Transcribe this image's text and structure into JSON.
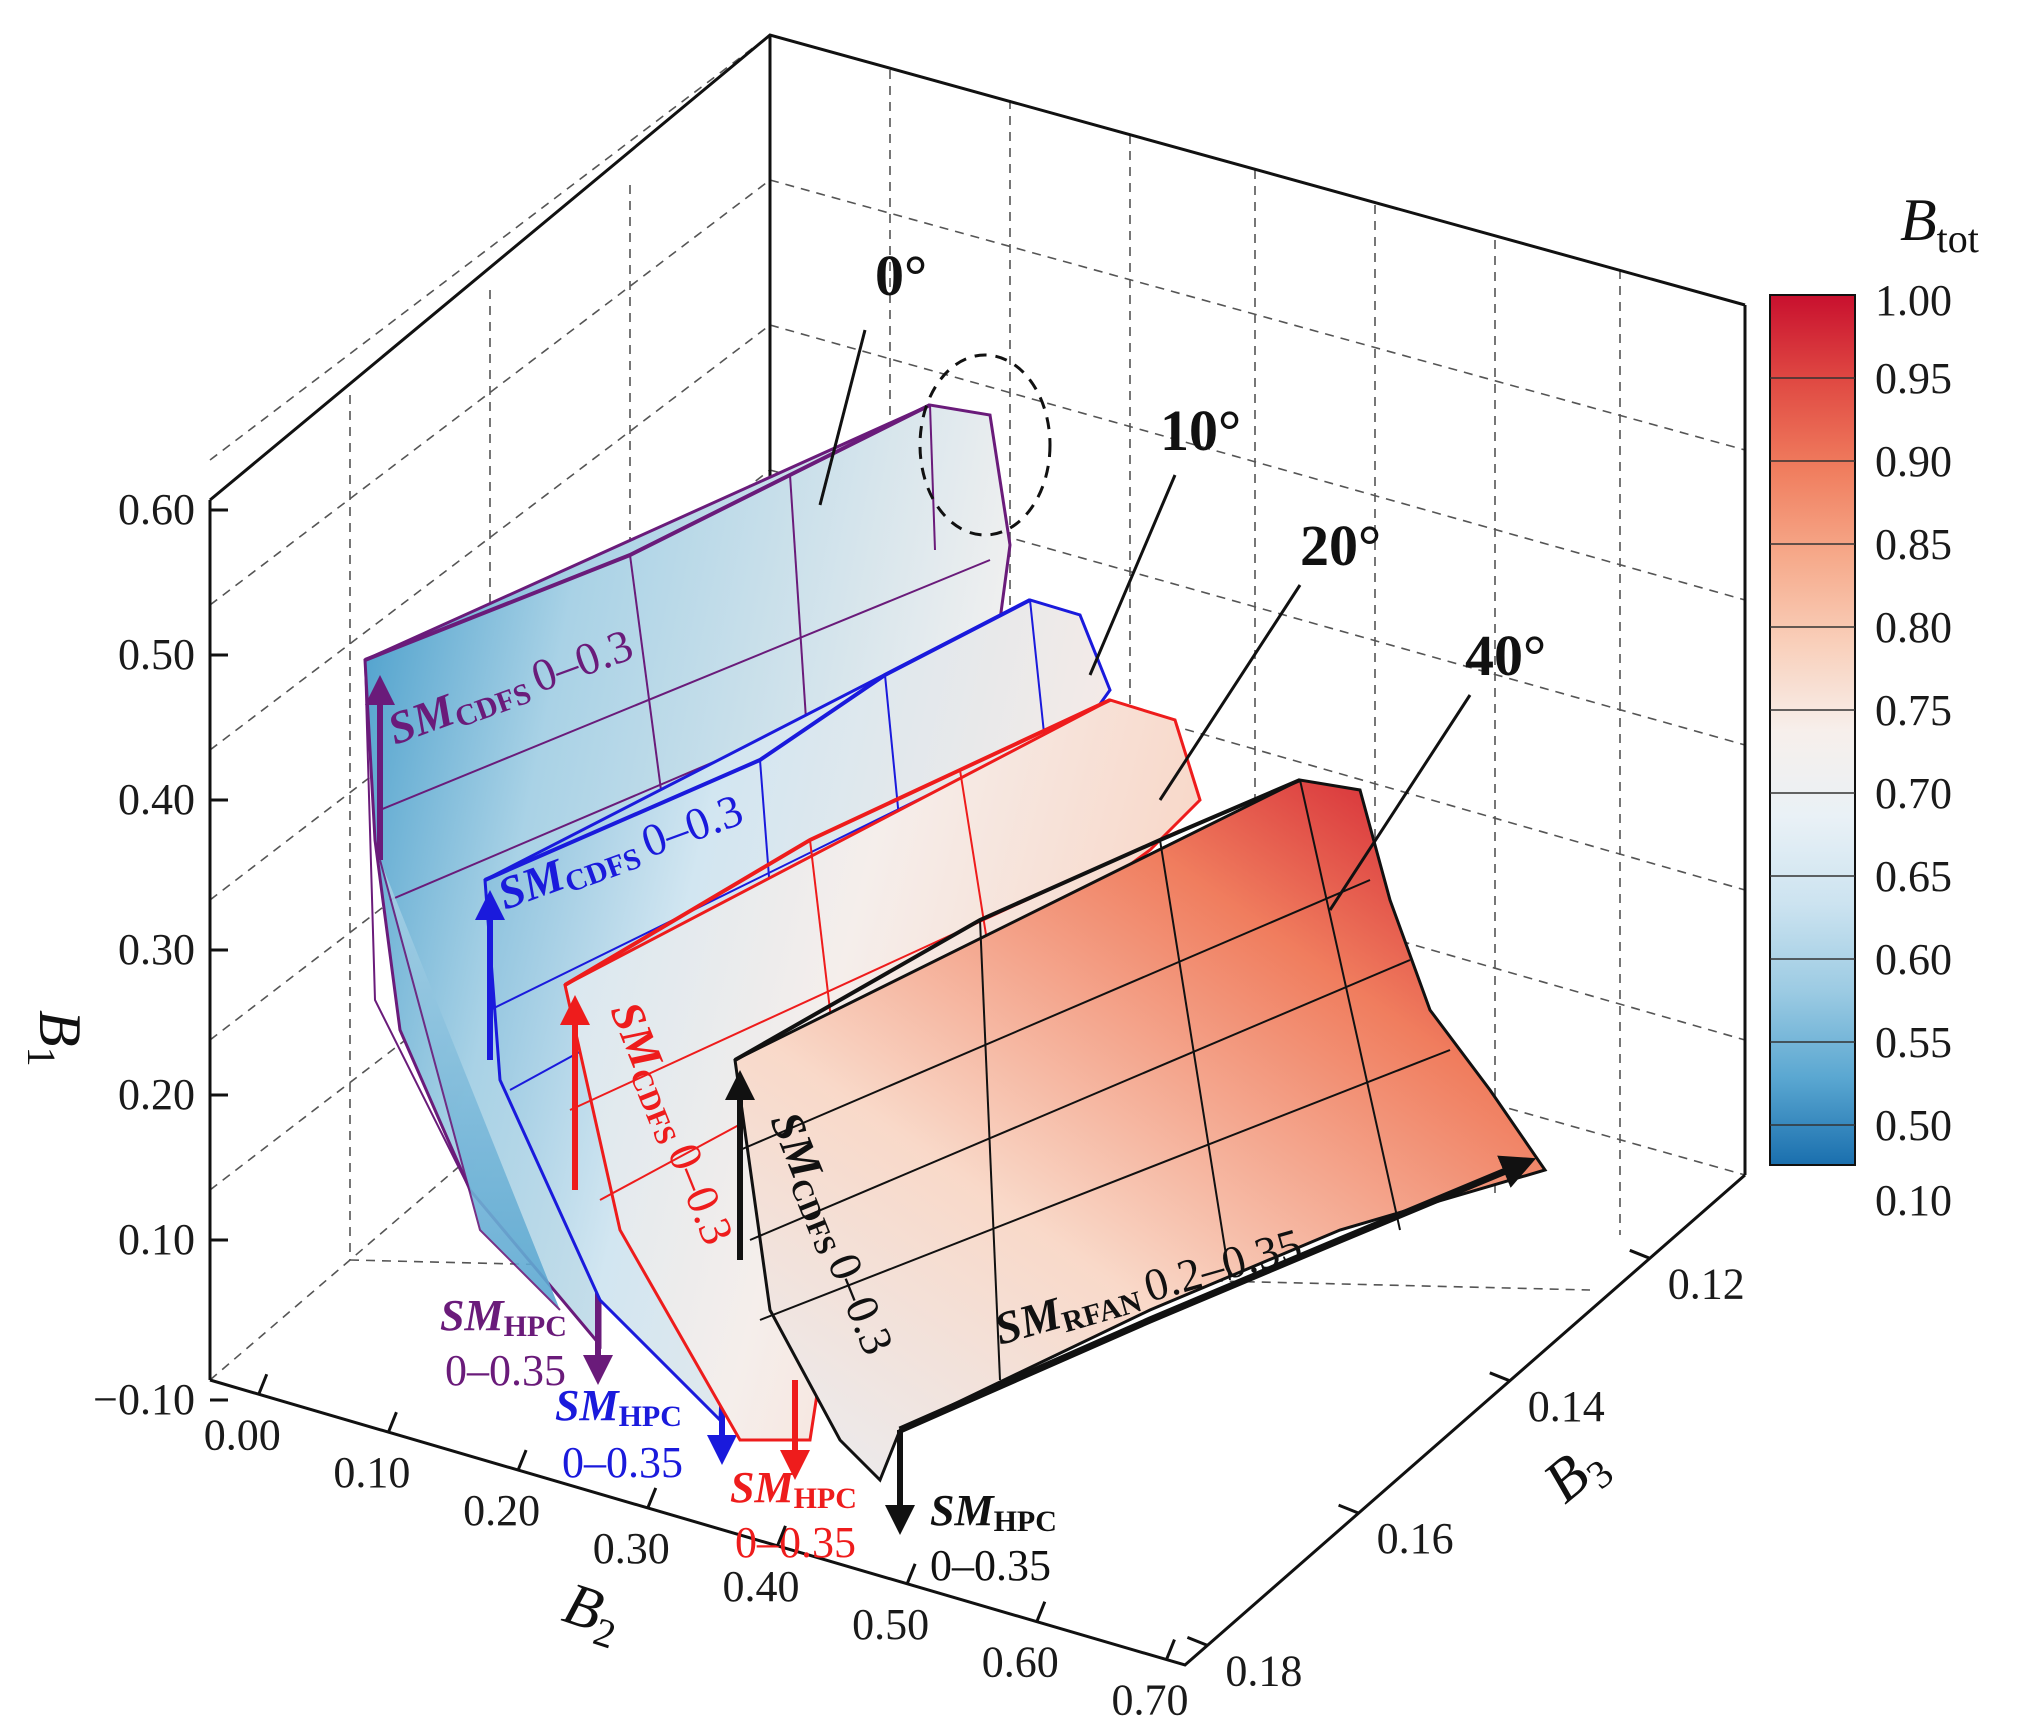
{
  "chart_data": {
    "type": "surface3d",
    "title": "",
    "axes": {
      "x": {
        "label": "B",
        "label_sub": "2",
        "ticks": [
          "0.00",
          "0.10",
          "0.20",
          "0.30",
          "0.40",
          "0.50",
          "0.60",
          "0.70"
        ]
      },
      "y": {
        "label": "B",
        "label_sub": "3",
        "ticks": [
          "0.12",
          "0.14",
          "0.16",
          "0.18"
        ]
      },
      "z": {
        "label": "B",
        "label_sub": "1",
        "ticks": [
          "0.60",
          "0.50",
          "0.40",
          "0.30",
          "0.20",
          "0.10",
          "−0.10"
        ]
      }
    },
    "colorbar": {
      "title": "B",
      "title_sub": "tot",
      "ticks": [
        "1.00",
        "0.95",
        "0.90",
        "0.85",
        "0.80",
        "0.75",
        "0.70",
        "0.65",
        "0.60",
        "0.55",
        "0.50",
        "0.10"
      ],
      "colors": [
        "#c8102e",
        "#e04a43",
        "#f07d5e",
        "#f6a98a",
        "#f9cfba",
        "#f5ebe6",
        "#eef2f6",
        "#d2e6f1",
        "#a9d2e6",
        "#77b7d8",
        "#3e98c8",
        "#1a6fae"
      ]
    },
    "series": [
      {
        "name": "0°",
        "angle_label": "0°",
        "color": "#6a1b7a",
        "cdfs": {
          "sm": "SM",
          "sub": "CDFS",
          "range": "0–0.3"
        },
        "hpc": {
          "sm": "SM",
          "sub": "HPC",
          "range": "0–0.35"
        }
      },
      {
        "name": "10°",
        "angle_label": "10°",
        "color": "#1a1adc",
        "cdfs": {
          "sm": "SM",
          "sub": "CDFS",
          "range": "0–0.3"
        },
        "hpc": {
          "sm": "SM",
          "sub": "HPC",
          "range": "0–0.35"
        }
      },
      {
        "name": "20°",
        "angle_label": "20°",
        "color": "#ee1c1c",
        "cdfs": {
          "sm": "SM",
          "sub": "CDFS",
          "range": "0–0.3"
        },
        "hpc": {
          "sm": "SM",
          "sub": "HPC",
          "range": "0–0.35"
        }
      },
      {
        "name": "40°",
        "angle_label": "40°",
        "color": "#111111",
        "cdfs": {
          "sm": "SM",
          "sub": "CDFS",
          "range": "0–0.3"
        },
        "hpc": {
          "sm": "SM",
          "sub": "HPC",
          "range": "0–0.35"
        },
        "rfan": {
          "sm": "SM",
          "sub": "RFAN",
          "range": "0.2–0.35"
        }
      }
    ]
  }
}
